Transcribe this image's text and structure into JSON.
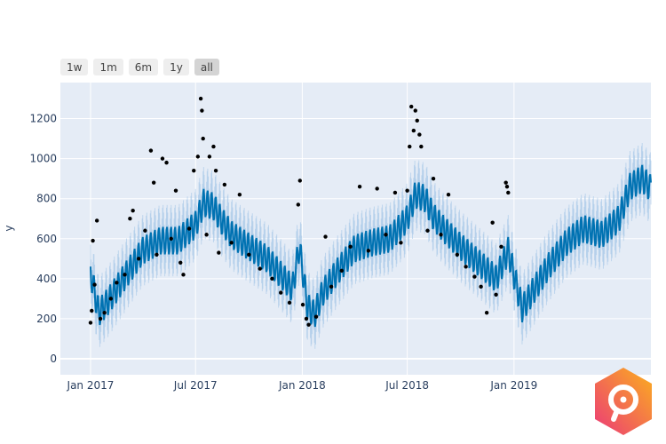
{
  "range_selector": {
    "buttons": [
      "1w",
      "1m",
      "6m",
      "1y",
      "all"
    ],
    "active": "all"
  },
  "chart_data": {
    "type": "line",
    "title": "",
    "xlabel": "",
    "ylabel": "y",
    "ylim": [
      -80,
      1380
    ],
    "xlim": [
      "2016-11-10",
      "2019-08-25"
    ],
    "grid": true,
    "yticks": [
      0,
      200,
      400,
      600,
      800,
      1000,
      1200
    ],
    "xticks": [
      {
        "date": "2017-01-01",
        "label": "Jan 2017"
      },
      {
        "date": "2017-07-01",
        "label": "Jul 2017"
      },
      {
        "date": "2018-01-01",
        "label": "Jan 2018"
      },
      {
        "date": "2018-07-01",
        "label": "Jul 2018"
      },
      {
        "date": "2019-01-01",
        "label": "Jan 2019"
      }
    ],
    "colors": {
      "forecast": "#0072B2",
      "band": "#9ec3e6",
      "points": "#000000",
      "plot_bg": "#e5ecf6",
      "grid": "#ffffff"
    },
    "weekly_amplitude": 70,
    "interval_halfwidth": 110,
    "forecast": [
      [
        "2017-01-01",
        430
      ],
      [
        "2017-01-15",
        230
      ],
      [
        "2017-02-01",
        290
      ],
      [
        "2017-03-01",
        410
      ],
      [
        "2017-04-01",
        540
      ],
      [
        "2017-05-01",
        590
      ],
      [
        "2017-06-01",
        590
      ],
      [
        "2017-07-01",
        670
      ],
      [
        "2017-07-15",
        780
      ],
      [
        "2017-08-01",
        760
      ],
      [
        "2017-08-15",
        690
      ],
      [
        "2017-09-01",
        620
      ],
      [
        "2017-10-01",
        560
      ],
      [
        "2017-11-01",
        500
      ],
      [
        "2017-12-01",
        400
      ],
      [
        "2017-12-15",
        350
      ],
      [
        "2017-12-27",
        560
      ],
      [
        "2018-01-10",
        260
      ],
      [
        "2018-01-22",
        220
      ],
      [
        "2018-02-05",
        330
      ],
      [
        "2018-03-01",
        430
      ],
      [
        "2018-04-01",
        550
      ],
      [
        "2018-05-01",
        580
      ],
      [
        "2018-06-01",
        600
      ],
      [
        "2018-07-01",
        700
      ],
      [
        "2018-07-15",
        820
      ],
      [
        "2018-08-01",
        800
      ],
      [
        "2018-08-15",
        710
      ],
      [
        "2018-09-01",
        650
      ],
      [
        "2018-10-01",
        560
      ],
      [
        "2018-11-01",
        480
      ],
      [
        "2018-12-01",
        400
      ],
      [
        "2018-12-22",
        540
      ],
      [
        "2019-01-15",
        250
      ],
      [
        "2019-02-01",
        330
      ],
      [
        "2019-03-01",
        460
      ],
      [
        "2019-04-01",
        580
      ],
      [
        "2019-05-01",
        650
      ],
      [
        "2019-06-01",
        620
      ],
      [
        "2019-07-01",
        700
      ],
      [
        "2019-07-20",
        860
      ],
      [
        "2019-08-10",
        900
      ],
      [
        "2019-08-25",
        850
      ]
    ],
    "observed": [
      [
        "2017-01-01",
        180
      ],
      [
        "2017-01-03",
        240
      ],
      [
        "2017-01-05",
        590
      ],
      [
        "2017-01-08",
        370
      ],
      [
        "2017-01-12",
        690
      ],
      [
        "2017-01-18",
        200
      ],
      [
        "2017-01-25",
        230
      ],
      [
        "2017-02-05",
        300
      ],
      [
        "2017-02-15",
        380
      ],
      [
        "2017-03-01",
        420
      ],
      [
        "2017-03-10",
        700
      ],
      [
        "2017-03-15",
        740
      ],
      [
        "2017-03-25",
        500
      ],
      [
        "2017-04-05",
        640
      ],
      [
        "2017-04-15",
        1040
      ],
      [
        "2017-04-20",
        880
      ],
      [
        "2017-04-25",
        520
      ],
      [
        "2017-05-05",
        1000
      ],
      [
        "2017-05-12",
        980
      ],
      [
        "2017-05-20",
        600
      ],
      [
        "2017-05-28",
        840
      ],
      [
        "2017-06-05",
        480
      ],
      [
        "2017-06-10",
        420
      ],
      [
        "2017-06-20",
        650
      ],
      [
        "2017-06-28",
        940
      ],
      [
        "2017-07-05",
        1010
      ],
      [
        "2017-07-10",
        1300
      ],
      [
        "2017-07-12",
        1240
      ],
      [
        "2017-07-14",
        1100
      ],
      [
        "2017-07-20",
        620
      ],
      [
        "2017-07-25",
        1010
      ],
      [
        "2017-08-01",
        1060
      ],
      [
        "2017-08-05",
        940
      ],
      [
        "2017-08-10",
        530
      ],
      [
        "2017-08-20",
        870
      ],
      [
        "2017-09-01",
        580
      ],
      [
        "2017-09-15",
        820
      ],
      [
        "2017-10-01",
        520
      ],
      [
        "2017-10-20",
        450
      ],
      [
        "2017-11-10",
        400
      ],
      [
        "2017-11-25",
        330
      ],
      [
        "2017-12-10",
        280
      ],
      [
        "2017-12-28",
        890
      ],
      [
        "2017-12-25",
        770
      ],
      [
        "2018-01-02",
        270
      ],
      [
        "2018-01-08",
        200
      ],
      [
        "2018-01-12",
        170
      ],
      [
        "2018-01-25",
        210
      ],
      [
        "2018-02-10",
        610
      ],
      [
        "2018-02-20",
        360
      ],
      [
        "2018-03-10",
        440
      ],
      [
        "2018-03-25",
        560
      ],
      [
        "2018-04-10",
        860
      ],
      [
        "2018-04-25",
        540
      ],
      [
        "2018-05-10",
        850
      ],
      [
        "2018-05-25",
        620
      ],
      [
        "2018-06-10",
        830
      ],
      [
        "2018-06-20",
        580
      ],
      [
        "2018-07-01",
        840
      ],
      [
        "2018-07-05",
        1060
      ],
      [
        "2018-07-08",
        1260
      ],
      [
        "2018-07-12",
        1140
      ],
      [
        "2018-07-15",
        1240
      ],
      [
        "2018-07-18",
        1190
      ],
      [
        "2018-07-22",
        1120
      ],
      [
        "2018-07-25",
        1060
      ],
      [
        "2018-08-05",
        640
      ],
      [
        "2018-08-15",
        900
      ],
      [
        "2018-08-28",
        620
      ],
      [
        "2018-09-10",
        820
      ],
      [
        "2018-09-25",
        520
      ],
      [
        "2018-10-10",
        460
      ],
      [
        "2018-10-25",
        410
      ],
      [
        "2018-11-05",
        360
      ],
      [
        "2018-11-15",
        230
      ],
      [
        "2018-11-25",
        680
      ],
      [
        "2018-12-01",
        320
      ],
      [
        "2018-12-10",
        560
      ],
      [
        "2018-12-18",
        880
      ],
      [
        "2018-12-20",
        860
      ],
      [
        "2018-12-22",
        830
      ]
    ]
  }
}
